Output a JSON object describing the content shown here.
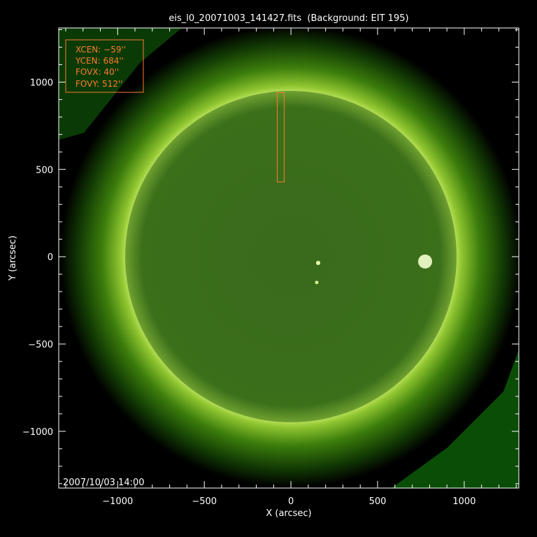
{
  "chart_data": {
    "type": "heatmap",
    "title": "eis_l0_20071003_141427.fits  (Background: EIT 195)",
    "xlabel": "X (arcsec)",
    "ylabel": "Y (arcsec)",
    "xlim": [
      -1340,
      1315
    ],
    "ylim": [
      -1325,
      1310
    ],
    "x_ticks": [
      -1000,
      -500,
      0,
      500,
      1000
    ],
    "y_ticks": [
      -1000,
      -500,
      0,
      500,
      1000
    ],
    "x_tick_labels": [
      "−1000",
      "−500",
      "0",
      "500",
      "1000"
    ],
    "y_tick_labels": [
      "−1000",
      "−500",
      "0",
      "500",
      "1000"
    ],
    "minor_tick_step": 100,
    "timestamp": "2007/10/03 14:00",
    "background_colormap": "green (EIT 195)",
    "solar_disk": {
      "center": [
        0,
        0
      ],
      "radius_arcsec": 955
    },
    "field_of_view": {
      "xcen": -59,
      "ycen": 684,
      "fovx": 40,
      "fovy": 512,
      "labels": [
        "XCEN:  −59''",
        "YCEN:  684''",
        "FOVX:  40''",
        "FOVY:  512''"
      ],
      "color": "#ff7a2a"
    },
    "grid": false
  }
}
